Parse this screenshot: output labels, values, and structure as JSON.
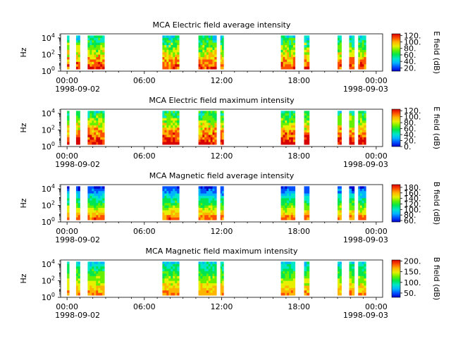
{
  "figure": {
    "panels": [
      {
        "title": "MCA  Electric field average intensity",
        "ylabel": "Hz",
        "cbar_label": "E field (dB)",
        "cbar_ticks": [
          "20.",
          "40.",
          "60.",
          "80.",
          "100.",
          "120."
        ],
        "cbar_range": [
          10,
          125
        ]
      },
      {
        "title": "MCA  Electric field maximum intensity",
        "ylabel": "Hz",
        "cbar_label": "E field (dB)",
        "cbar_ticks": [
          "0.",
          "20.",
          "40.",
          "60.",
          "80.",
          "100.",
          "120."
        ],
        "cbar_range": [
          0,
          125
        ]
      },
      {
        "title": "MCA  Magnetic field average intensity",
        "ylabel": "Hz",
        "cbar_label": "B field (dB)",
        "cbar_ticks": [
          "60.",
          "80.",
          "100.",
          "120.",
          "140.",
          "160.",
          "180."
        ],
        "cbar_range": [
          55,
          190
        ]
      },
      {
        "title": "MCA  Magnetic field maximum intensity",
        "ylabel": "Hz",
        "cbar_label": "B field (dB)",
        "cbar_ticks": [
          "50.",
          "100.",
          "150.",
          "200."
        ],
        "cbar_range": [
          30,
          205
        ]
      }
    ],
    "x_ticks": [
      "00:00",
      "06:00",
      "12:00",
      "18:00",
      "00:00"
    ],
    "x_dates": [
      "1998-09-02",
      "1998-09-03"
    ],
    "y_ticks": [
      {
        "base": "10",
        "exp": "0"
      },
      {
        "base": "10",
        "exp": "2"
      },
      {
        "base": "10",
        "exp": "4"
      }
    ],
    "colormap": [
      "#0000c8",
      "#0050ff",
      "#00b4ff",
      "#00e6c8",
      "#00e650",
      "#64f000",
      "#e6f000",
      "#ffb400",
      "#ff5000",
      "#d70000"
    ]
  },
  "chart_data": {
    "type": "heatmap",
    "x_unit": "UT hour",
    "xlim": [
      -0.5,
      24.5
    ],
    "ylim_log10_Hz": [
      0,
      4.5
    ],
    "data_intervals_hours": [
      [
        0.0,
        0.1
      ],
      [
        0.7,
        1.0
      ],
      [
        1.6,
        2.9
      ],
      [
        7.4,
        8.7
      ],
      [
        10.2,
        11.6
      ],
      [
        11.9,
        12.15
      ],
      [
        16.6,
        17.7
      ],
      [
        18.4,
        18.8
      ],
      [
        21.0,
        21.3
      ],
      [
        21.9,
        22.3
      ],
      [
        22.6,
        23.2
      ]
    ],
    "series": [
      {
        "name": "MCA  Electric field average intensity",
        "unit": "dB",
        "range": [
          20,
          125
        ]
      },
      {
        "name": "MCA  Electric field maximum intensity",
        "unit": "dB",
        "range": [
          0,
          125
        ]
      },
      {
        "name": "MCA  Magnetic field average intensity",
        "unit": "dB",
        "range": [
          60,
          185
        ]
      },
      {
        "name": "MCA  Magnetic field maximum intensity",
        "unit": "dB",
        "range": [
          40,
          200
        ]
      }
    ]
  }
}
